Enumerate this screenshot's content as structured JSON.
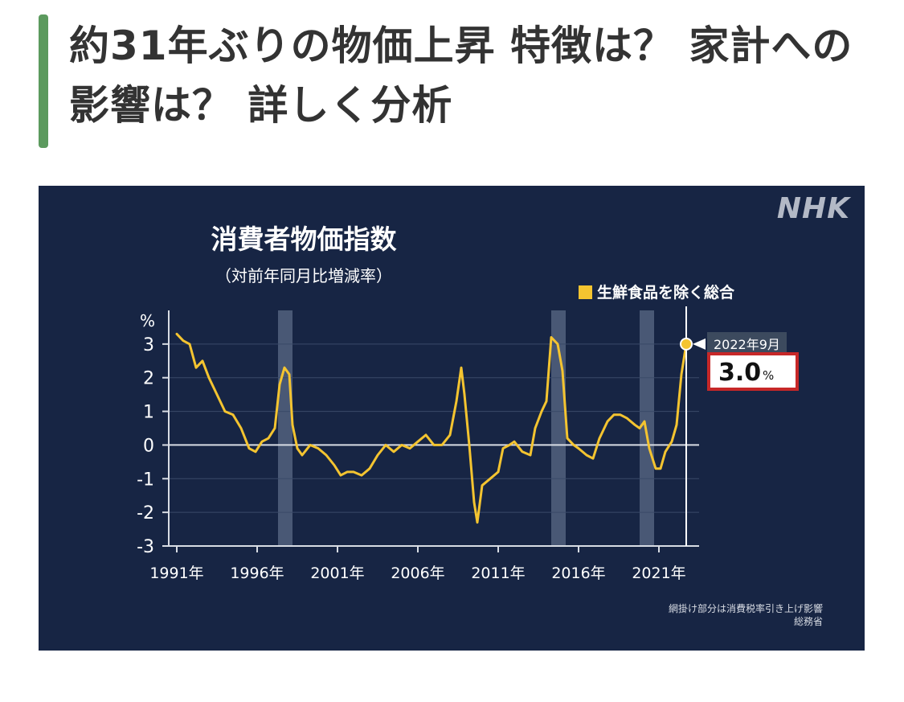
{
  "article": {
    "title": "約31年ぶりの物価上昇 特徴は？ 家計への影響は？ 詳しく分析"
  },
  "figure": {
    "logo": "NHK",
    "note_lines": [
      "網掛け部分は消費税率引き上げ影響",
      "総務省"
    ],
    "accent_colors": {
      "background": "#172544",
      "line": "#f4c430",
      "highlight_box": "#c62828",
      "shading": "#5b6a85"
    }
  },
  "chart_data": {
    "type": "line",
    "title": "消費者物価指数",
    "subtitle": "（対前年同月比増減率）",
    "ylabel": "%",
    "xlabel": "",
    "ylim": [
      -3,
      4
    ],
    "yticks": [
      "3",
      "2",
      "1",
      "0",
      "-1",
      "-2",
      "-3"
    ],
    "ytick_values": [
      3,
      2,
      1,
      0,
      -1,
      -2,
      -3
    ],
    "xlim": [
      1990.5,
      2023.5
    ],
    "xticks": [
      "1991年",
      "1996年",
      "2001年",
      "2006年",
      "2011年",
      "2016年",
      "2021年"
    ],
    "xtick_values": [
      1991,
      1996,
      2001,
      2006,
      2011,
      2016,
      2021
    ],
    "grid": "horizontal",
    "legend": "top-right",
    "shaded_periods": [
      [
        1997.3,
        1998.2
      ],
      [
        2014.3,
        2015.2
      ],
      [
        2019.8,
        2020.7
      ]
    ],
    "series": [
      {
        "name": "生鮮食品を除く総合",
        "color": "#f4c430",
        "points": [
          [
            1991.0,
            3.3
          ],
          [
            1991.4,
            3.1
          ],
          [
            1991.8,
            3.0
          ],
          [
            1992.2,
            2.3
          ],
          [
            1992.6,
            2.5
          ],
          [
            1993.0,
            2.0
          ],
          [
            1993.5,
            1.5
          ],
          [
            1994.0,
            1.0
          ],
          [
            1994.5,
            0.9
          ],
          [
            1995.0,
            0.5
          ],
          [
            1995.5,
            -0.1
          ],
          [
            1995.9,
            -0.2
          ],
          [
            1996.3,
            0.1
          ],
          [
            1996.7,
            0.2
          ],
          [
            1997.1,
            0.5
          ],
          [
            1997.4,
            1.8
          ],
          [
            1997.7,
            2.3
          ],
          [
            1998.0,
            2.1
          ],
          [
            1998.2,
            0.6
          ],
          [
            1998.5,
            -0.1
          ],
          [
            1998.8,
            -0.3
          ],
          [
            1999.3,
            0.0
          ],
          [
            1999.8,
            -0.1
          ],
          [
            2000.3,
            -0.3
          ],
          [
            2000.8,
            -0.6
          ],
          [
            2001.2,
            -0.9
          ],
          [
            2001.6,
            -0.8
          ],
          [
            2002.0,
            -0.8
          ],
          [
            2002.5,
            -0.9
          ],
          [
            2003.0,
            -0.7
          ],
          [
            2003.5,
            -0.3
          ],
          [
            2004.0,
            0.0
          ],
          [
            2004.5,
            -0.2
          ],
          [
            2005.0,
            0.0
          ],
          [
            2005.5,
            -0.1
          ],
          [
            2006.0,
            0.1
          ],
          [
            2006.5,
            0.3
          ],
          [
            2007.0,
            0.0
          ],
          [
            2007.5,
            0.0
          ],
          [
            2008.0,
            0.3
          ],
          [
            2008.4,
            1.3
          ],
          [
            2008.7,
            2.3
          ],
          [
            2008.9,
            1.5
          ],
          [
            2009.2,
            0.0
          ],
          [
            2009.5,
            -1.7
          ],
          [
            2009.7,
            -2.3
          ],
          [
            2010.0,
            -1.2
          ],
          [
            2010.5,
            -1.0
          ],
          [
            2011.0,
            -0.8
          ],
          [
            2011.3,
            -0.1
          ],
          [
            2011.7,
            0.0
          ],
          [
            2012.0,
            0.1
          ],
          [
            2012.5,
            -0.2
          ],
          [
            2013.0,
            -0.3
          ],
          [
            2013.3,
            0.5
          ],
          [
            2013.7,
            1.0
          ],
          [
            2014.0,
            1.3
          ],
          [
            2014.3,
            3.2
          ],
          [
            2014.7,
            3.0
          ],
          [
            2015.0,
            2.2
          ],
          [
            2015.3,
            0.2
          ],
          [
            2015.7,
            0.0
          ],
          [
            2016.0,
            -0.1
          ],
          [
            2016.5,
            -0.3
          ],
          [
            2016.9,
            -0.4
          ],
          [
            2017.3,
            0.2
          ],
          [
            2017.8,
            0.7
          ],
          [
            2018.2,
            0.9
          ],
          [
            2018.6,
            0.9
          ],
          [
            2019.0,
            0.8
          ],
          [
            2019.5,
            0.6
          ],
          [
            2019.8,
            0.5
          ],
          [
            2020.1,
            0.7
          ],
          [
            2020.4,
            -0.1
          ],
          [
            2020.8,
            -0.7
          ],
          [
            2021.1,
            -0.7
          ],
          [
            2021.4,
            -0.2
          ],
          [
            2021.8,
            0.1
          ],
          [
            2022.1,
            0.6
          ],
          [
            2022.4,
            2.1
          ],
          [
            2022.7,
            3.0
          ]
        ]
      }
    ],
    "annotation": {
      "date": "2022年9月",
      "x": 2022.7,
      "value": "3.0",
      "unit": "%"
    }
  }
}
